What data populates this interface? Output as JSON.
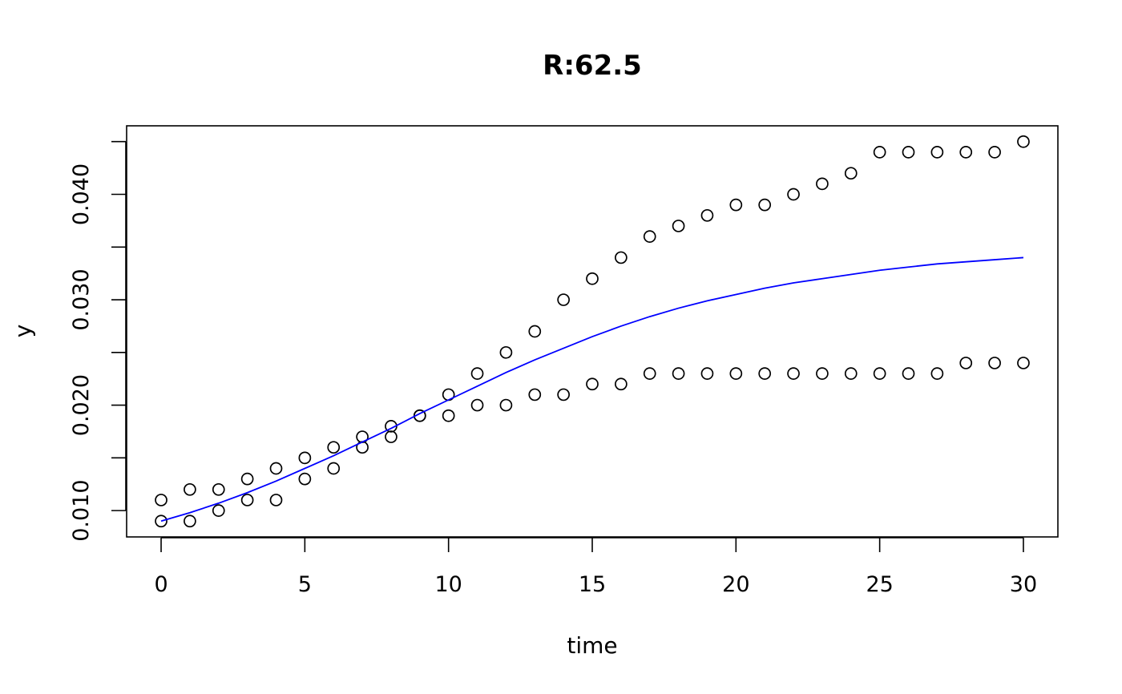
{
  "chart_data": {
    "type": "scatter",
    "title": "R:62.5",
    "xlabel": "time",
    "ylabel": "y",
    "xlim": [
      -1.2,
      31.2
    ],
    "ylim": [
      0.0075,
      0.0465
    ],
    "x_ticks": [
      0,
      5,
      10,
      15,
      20,
      25,
      30
    ],
    "y_ticks": [
      0.01,
      0.015,
      0.02,
      0.025,
      0.03,
      0.035,
      0.04,
      0.045
    ],
    "y_tick_labels": [
      "0.010",
      "",
      "0.020",
      "",
      "0.030",
      "",
      "0.040",
      ""
    ],
    "grid": false,
    "legend": "none",
    "series": [
      {
        "kind": "points",
        "color": "#000000",
        "x": [
          0,
          1,
          2,
          3,
          4,
          5,
          6,
          7,
          8,
          9,
          10,
          11,
          12,
          13,
          14,
          15,
          16,
          17,
          18,
          19,
          20,
          21,
          22,
          23,
          24,
          25,
          26,
          27,
          28,
          29,
          30
        ],
        "y": [
          0.011,
          0.012,
          0.012,
          0.013,
          0.014,
          0.015,
          0.016,
          0.017,
          0.018,
          0.019,
          0.021,
          0.023,
          0.025,
          0.027,
          0.03,
          0.032,
          0.034,
          0.036,
          0.037,
          0.038,
          0.039,
          0.039,
          0.04,
          0.041,
          0.042,
          0.044,
          0.044,
          0.044,
          0.044,
          0.044,
          0.045
        ]
      },
      {
        "kind": "points",
        "color": "#000000",
        "x": [
          0,
          1,
          2,
          3,
          4,
          5,
          6,
          7,
          8,
          9,
          10,
          11,
          12,
          13,
          14,
          15,
          16,
          17,
          18,
          19,
          20,
          21,
          22,
          23,
          24,
          25,
          26,
          27,
          28,
          29,
          30
        ],
        "y": [
          0.009,
          0.009,
          0.01,
          0.011,
          0.011,
          0.013,
          0.014,
          0.016,
          0.017,
          0.019,
          0.019,
          0.02,
          0.02,
          0.021,
          0.021,
          0.022,
          0.022,
          0.023,
          0.023,
          0.023,
          0.023,
          0.023,
          0.023,
          0.023,
          0.023,
          0.023,
          0.023,
          0.023,
          0.024,
          0.024,
          0.024
        ]
      },
      {
        "kind": "line",
        "color": "#0000ff",
        "x": [
          0,
          1,
          2,
          3,
          4,
          5,
          6,
          7,
          8,
          9,
          10,
          11,
          12,
          13,
          14,
          15,
          16,
          17,
          18,
          19,
          20,
          21,
          22,
          23,
          24,
          25,
          26,
          27,
          28,
          29,
          30
        ],
        "y": [
          0.009,
          0.0098,
          0.0107,
          0.0117,
          0.0128,
          0.014,
          0.0152,
          0.0165,
          0.0178,
          0.0192,
          0.0205,
          0.0218,
          0.0231,
          0.0243,
          0.0254,
          0.0265,
          0.0275,
          0.0284,
          0.0292,
          0.0299,
          0.0305,
          0.0311,
          0.0316,
          0.032,
          0.0324,
          0.0328,
          0.0331,
          0.0334,
          0.0336,
          0.0338,
          0.034
        ]
      }
    ]
  }
}
